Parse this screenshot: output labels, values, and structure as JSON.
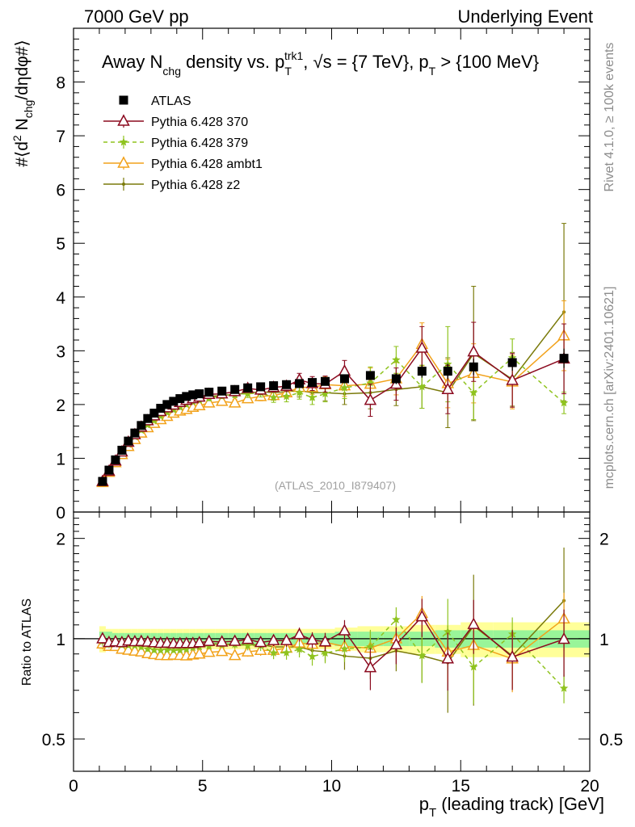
{
  "header": {
    "left": "7000 GeV pp",
    "right": "Underlying Event"
  },
  "side_labels": {
    "rivet": "Rivet 4.1.0, ≥ 100k events",
    "mcplots": "mcplots.cern.ch [arXiv:2401.10621]"
  },
  "colors": {
    "atlas": "#000000",
    "p370": "#8b0a1f",
    "p379": "#8fc31f",
    "ambt1": "#f2a21b",
    "z2": "#7a7a0a",
    "band_inner": "#99f599",
    "band_outer": "#ffff99"
  },
  "chart_data": [
    {
      "panel": "main",
      "type": "scatter",
      "title": "Away N_chg density vs. p_T^trk1, √s = {7 TeV}, p_T > {100 MeV}",
      "title_parts": {
        "prefix": "Away N",
        "chg": "chg",
        "mid": " density vs. p",
        "T": "T",
        "trk1": "trk1",
        "after": ", √s = {7 TeV}, p",
        "T2": "T",
        "suffix": " > {100 MeV}"
      },
      "ylabel": "#⟨d² N_chg/dηdφ#⟩",
      "ylabel_parts": {
        "a": "#⟨d",
        "sup2": "2",
        "b": " N",
        "chg": "chg",
        "c": "/dηdφ#⟩"
      },
      "xlabel": "",
      "xlim": [
        0,
        20
      ],
      "ylim": [
        0,
        9
      ],
      "yticks": [
        0,
        1,
        2,
        3,
        4,
        5,
        6,
        7,
        8
      ],
      "watermark": "(ATLAS_2010_I879407)",
      "legend_position": "top-left",
      "x": [
        1.125,
        1.375,
        1.625,
        1.875,
        2.125,
        2.375,
        2.625,
        2.875,
        3.125,
        3.375,
        3.625,
        3.875,
        4.125,
        4.375,
        4.625,
        4.875,
        5.25,
        5.75,
        6.25,
        6.75,
        7.25,
        7.75,
        8.25,
        8.75,
        9.25,
        9.75,
        10.5,
        11.5,
        12.5,
        13.5,
        14.5,
        15.5,
        17,
        19
      ],
      "series": [
        {
          "name": "ATLAS",
          "marker": "square",
          "values": [
            0.57,
            0.78,
            0.97,
            1.15,
            1.32,
            1.47,
            1.61,
            1.74,
            1.84,
            1.93,
            2.0,
            2.06,
            2.11,
            2.15,
            2.18,
            2.2,
            2.23,
            2.25,
            2.28,
            2.31,
            2.33,
            2.35,
            2.37,
            2.39,
            2.41,
            2.43,
            2.48,
            2.54,
            2.48,
            2.62,
            2.62,
            2.7,
            2.78,
            2.86
          ],
          "errors": [
            0.03,
            0.03,
            0.03,
            0.03,
            0.03,
            0.03,
            0.03,
            0.03,
            0.03,
            0.03,
            0.03,
            0.03,
            0.03,
            0.03,
            0.03,
            0.03,
            0.03,
            0.03,
            0.03,
            0.03,
            0.03,
            0.04,
            0.04,
            0.04,
            0.05,
            0.05,
            0.06,
            0.08,
            0.1,
            0.12,
            0.14,
            0.15,
            0.15,
            0.18
          ]
        },
        {
          "name": "Pythia 6.428 370",
          "marker": "triangle-open",
          "values": [
            0.57,
            0.76,
            0.95,
            1.12,
            1.3,
            1.44,
            1.58,
            1.7,
            1.79,
            1.87,
            1.94,
            1.99,
            2.04,
            2.08,
            2.11,
            2.14,
            2.19,
            2.2,
            2.24,
            2.3,
            2.27,
            2.32,
            2.34,
            2.46,
            2.39,
            2.38,
            2.62,
            2.08,
            2.38,
            3.05,
            2.28,
            2.98,
            2.45,
            2.85
          ],
          "errors": [
            0.02,
            0.02,
            0.02,
            0.02,
            0.02,
            0.02,
            0.03,
            0.03,
            0.03,
            0.03,
            0.03,
            0.03,
            0.04,
            0.04,
            0.04,
            0.04,
            0.05,
            0.05,
            0.06,
            0.07,
            0.08,
            0.09,
            0.1,
            0.12,
            0.13,
            0.15,
            0.2,
            0.3,
            0.3,
            0.4,
            0.45,
            0.55,
            0.5,
            0.65
          ]
        },
        {
          "name": "Pythia 6.428 379",
          "marker": "star",
          "values": [
            0.56,
            0.75,
            0.94,
            1.1,
            1.26,
            1.4,
            1.52,
            1.62,
            1.7,
            1.78,
            1.85,
            1.9,
            1.95,
            2.0,
            2.05,
            2.08,
            2.12,
            2.16,
            2.19,
            2.2,
            2.22,
            2.13,
            2.15,
            2.22,
            2.13,
            2.2,
            2.31,
            2.4,
            2.83,
            2.33,
            2.75,
            2.22,
            2.87,
            2.03
          ],
          "errors": [
            0.02,
            0.02,
            0.02,
            0.02,
            0.02,
            0.02,
            0.03,
            0.03,
            0.03,
            0.03,
            0.03,
            0.03,
            0.04,
            0.04,
            0.04,
            0.04,
            0.05,
            0.05,
            0.06,
            0.07,
            0.08,
            0.09,
            0.1,
            0.12,
            0.13,
            0.15,
            0.2,
            0.3,
            0.25,
            0.4,
            0.7,
            0.5,
            0.35,
            0.2
          ]
        },
        {
          "name": "Pythia 6.428 ambt1",
          "marker": "triangle-open",
          "values": [
            0.55,
            0.74,
            0.92,
            1.07,
            1.22,
            1.35,
            1.47,
            1.57,
            1.65,
            1.72,
            1.78,
            1.84,
            1.88,
            1.91,
            1.95,
            1.98,
            2.03,
            2.06,
            2.03,
            2.11,
            2.15,
            2.17,
            2.22,
            2.32,
            2.32,
            2.37,
            2.35,
            2.38,
            2.48,
            3.12,
            2.39,
            2.58,
            2.42,
            3.28
          ],
          "errors": [
            0.02,
            0.02,
            0.02,
            0.02,
            0.02,
            0.02,
            0.03,
            0.03,
            0.03,
            0.03,
            0.03,
            0.03,
            0.04,
            0.04,
            0.04,
            0.04,
            0.05,
            0.05,
            0.06,
            0.07,
            0.08,
            0.09,
            0.1,
            0.12,
            0.13,
            0.15,
            0.2,
            0.3,
            0.3,
            0.4,
            0.45,
            0.55,
            0.5,
            0.65
          ]
        },
        {
          "name": "Pythia 6.428 z2",
          "marker": "dot",
          "values": [
            0.56,
            0.75,
            0.94,
            1.1,
            1.27,
            1.41,
            1.55,
            1.67,
            1.76,
            1.84,
            1.91,
            1.97,
            2.02,
            2.06,
            2.09,
            2.12,
            2.15,
            2.17,
            2.19,
            2.21,
            2.24,
            2.22,
            2.24,
            2.26,
            2.22,
            2.22,
            2.2,
            2.22,
            2.28,
            2.33,
            2.22,
            2.95,
            2.47,
            3.72
          ],
          "errors": [
            0.02,
            0.02,
            0.02,
            0.02,
            0.02,
            0.02,
            0.03,
            0.03,
            0.03,
            0.03,
            0.03,
            0.03,
            0.04,
            0.04,
            0.04,
            0.04,
            0.05,
            0.05,
            0.06,
            0.07,
            0.08,
            0.09,
            0.1,
            0.12,
            0.13,
            0.15,
            0.2,
            0.3,
            0.3,
            0.4,
            0.65,
            1.25,
            0.5,
            1.65
          ]
        }
      ]
    },
    {
      "panel": "ratio",
      "type": "scatter",
      "ylabel": "Ratio to ATLAS",
      "xlabel": "p_T (leading track) [GeV]",
      "xlabel_parts": {
        "p": "p",
        "T": "T",
        "rest": " (leading track) [GeV]"
      },
      "xlim": [
        0,
        20
      ],
      "ylim": [
        0.4,
        2.4
      ],
      "yscale": "log",
      "xticks": [
        0,
        5,
        10,
        15,
        20
      ],
      "yticks": [
        0.5,
        1,
        2
      ],
      "yticklabels": [
        "0.5",
        "1",
        "2"
      ],
      "band_note": "inner band = stat, outer band = stat+syst",
      "band_inner": [
        0.05,
        0.05,
        0.04,
        0.04,
        0.04,
        0.04,
        0.04,
        0.04,
        0.04,
        0.04,
        0.04,
        0.04,
        0.04,
        0.04,
        0.04,
        0.04,
        0.04,
        0.04,
        0.04,
        0.04,
        0.04,
        0.04,
        0.04,
        0.04,
        0.04,
        0.04,
        0.05,
        0.05,
        0.05,
        0.05,
        0.06,
        0.06,
        0.06,
        0.06
      ],
      "band_outer": [
        0.09,
        0.07,
        0.07,
        0.07,
        0.07,
        0.07,
        0.07,
        0.07,
        0.07,
        0.07,
        0.07,
        0.07,
        0.07,
        0.07,
        0.07,
        0.07,
        0.07,
        0.07,
        0.07,
        0.07,
        0.07,
        0.07,
        0.07,
        0.07,
        0.07,
        0.07,
        0.08,
        0.09,
        0.09,
        0.1,
        0.1,
        0.12,
        0.12,
        0.12
      ]
    }
  ]
}
